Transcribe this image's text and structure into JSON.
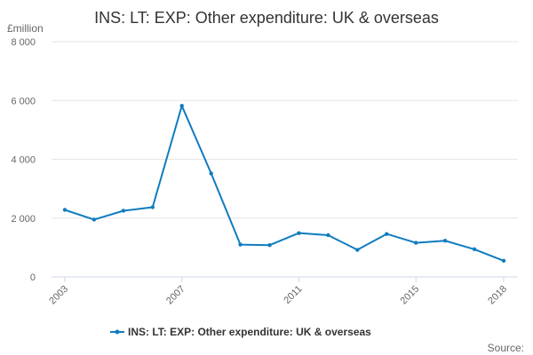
{
  "chart_data": {
    "type": "line",
    "title": "INS: LT: EXP: Other expenditure: UK & overseas",
    "unit_label": "£million",
    "x": [
      2003,
      2004,
      2005,
      2006,
      2007,
      2008,
      2009,
      2010,
      2011,
      2012,
      2013,
      2014,
      2015,
      2016,
      2017,
      2018
    ],
    "x_tick_labels": [
      "2003",
      "2007",
      "2011",
      "2015",
      "2018"
    ],
    "x_tick_values": [
      2003,
      2007,
      2011,
      2015,
      2018
    ],
    "y_tick_labels": [
      "0",
      "2 000",
      "4 000",
      "6 000",
      "8 000"
    ],
    "y_tick_values": [
      0,
      2000,
      4000,
      6000,
      8000
    ],
    "ylim": [
      0,
      8000
    ],
    "series": [
      {
        "name": "INS: LT: EXP: Other expenditure: UK & overseas",
        "color": "#0f7cbf",
        "values": [
          2280,
          1950,
          2250,
          2370,
          5820,
          3520,
          1100,
          1080,
          1490,
          1420,
          920,
          1460,
          1160,
          1230,
          940,
          550
        ]
      }
    ],
    "legend_position": "bottom-center",
    "grid": true,
    "source_label": "Source:"
  }
}
